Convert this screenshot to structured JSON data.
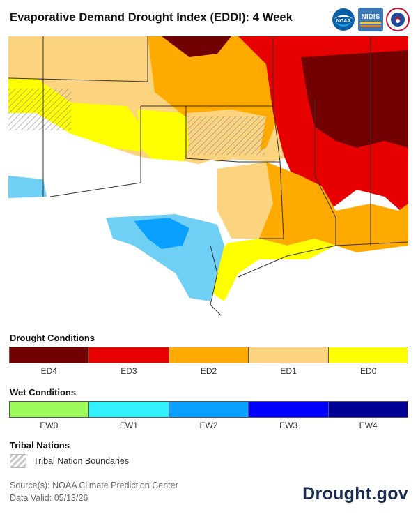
{
  "title": "Evaporative Demand Drought Index (EDDI): 4 Week",
  "logos": {
    "noaa": "NOAA",
    "nidis": "NIDIS",
    "nws": "NATIONAL WEATHER SERVICE"
  },
  "map": {
    "region": "South Central United States",
    "icons": {
      "tribal_pattern": "diagonal-hatch"
    }
  },
  "legend": {
    "drought": {
      "title": "Drought Conditions",
      "items": [
        {
          "label": "ED4",
          "color": "#730000"
        },
        {
          "label": "ED3",
          "color": "#e60000"
        },
        {
          "label": "ED2",
          "color": "#ffaa00"
        },
        {
          "label": "ED1",
          "color": "#fcd37f"
        },
        {
          "label": "ED0",
          "color": "#ffff00"
        }
      ]
    },
    "wet": {
      "title": "Wet Conditions",
      "items": [
        {
          "label": "EW0",
          "color": "#9dfa5a"
        },
        {
          "label": "EW1",
          "color": "#33f0ff"
        },
        {
          "label": "EW2",
          "color": "#0aa0ff"
        },
        {
          "label": "EW3",
          "color": "#0000ff"
        },
        {
          "label": "EW4",
          "color": "#000096"
        }
      ]
    },
    "tribal": {
      "title": "Tribal Nations",
      "label": "Tribal Nation Boundaries"
    }
  },
  "footer": {
    "source": "Source(s): NOAA Climate Prediction Center",
    "valid": "Data Valid: 05/13/26",
    "brand": "Drought.gov"
  }
}
